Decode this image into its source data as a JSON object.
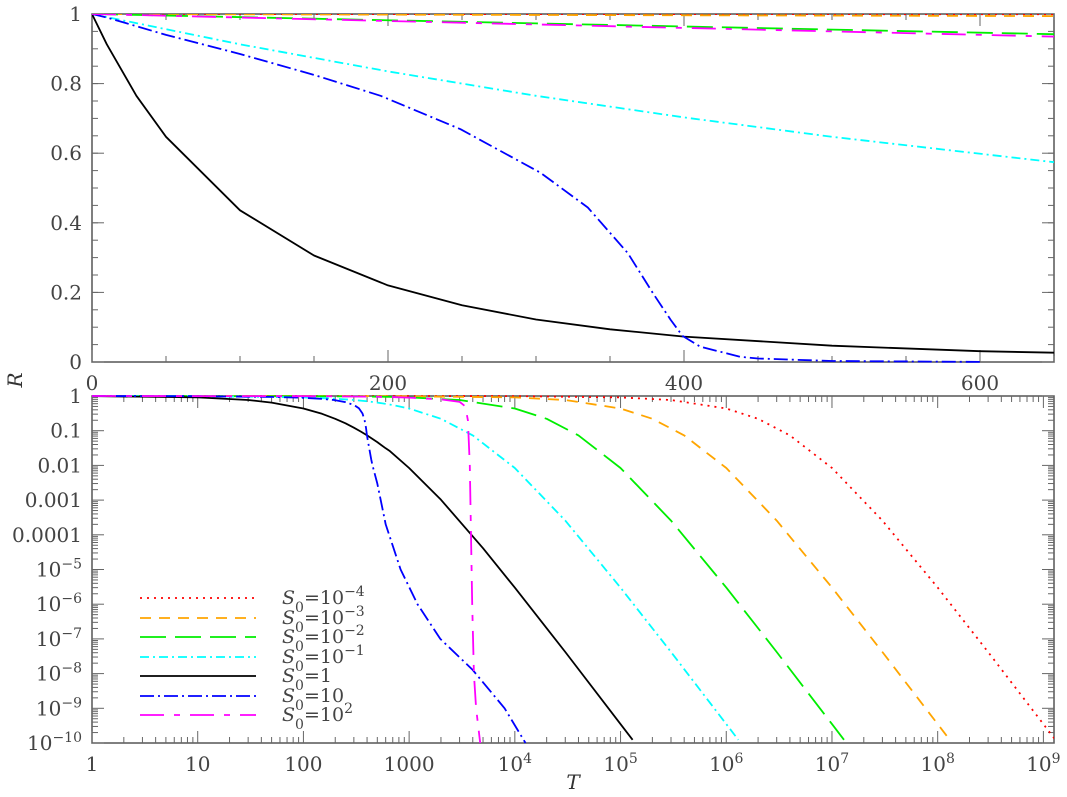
{
  "chart_data": [
    {
      "type": "line",
      "panel": "top",
      "xlabel": "",
      "ylabel": "R",
      "xscale": "linear",
      "yscale": "linear",
      "xlim": [
        0,
        650
      ],
      "ylim": [
        0,
        1
      ],
      "x_ticks": [
        {
          "v": 0,
          "label": "0"
        },
        {
          "v": 200,
          "label": "200"
        },
        {
          "v": 400,
          "label": "400"
        },
        {
          "v": 600,
          "label": "600"
        }
      ],
      "x_minor_step": 50,
      "y_ticks": [
        {
          "v": 0,
          "label": "0"
        },
        {
          "v": 0.2,
          "label": "0.2"
        },
        {
          "v": 0.4,
          "label": "0.4"
        },
        {
          "v": 0.6,
          "label": "0.6"
        },
        {
          "v": 0.8,
          "label": "0.8"
        },
        {
          "v": 1,
          "label": "1"
        }
      ],
      "y_minor_step": 0.05,
      "grid": false
    },
    {
      "type": "line",
      "panel": "bottom",
      "xlabel": "T",
      "ylabel": "",
      "xscale": "log",
      "yscale": "log",
      "xlim": [
        1,
        1260000000.0
      ],
      "ylim": [
        1e-10,
        1
      ],
      "x_ticks": [
        {
          "v": 1,
          "base": "1",
          "exp": ""
        },
        {
          "v": 10,
          "base": "10",
          "exp": ""
        },
        {
          "v": 100,
          "base": "100",
          "exp": ""
        },
        {
          "v": 1000,
          "base": "1000",
          "exp": ""
        },
        {
          "v": 10000.0,
          "base": "10",
          "exp": "4"
        },
        {
          "v": 100000.0,
          "base": "10",
          "exp": "5"
        },
        {
          "v": 1000000.0,
          "base": "10",
          "exp": "6"
        },
        {
          "v": 10000000.0,
          "base": "10",
          "exp": "7"
        },
        {
          "v": 100000000.0,
          "base": "10",
          "exp": "8"
        },
        {
          "v": 1000000000.0,
          "base": "10",
          "exp": "9"
        }
      ],
      "y_ticks": [
        {
          "v": 1,
          "base": "1",
          "exp": ""
        },
        {
          "v": 0.1,
          "base": "0.1",
          "exp": ""
        },
        {
          "v": 0.01,
          "base": "0.01",
          "exp": ""
        },
        {
          "v": 0.001,
          "base": "0.001",
          "exp": ""
        },
        {
          "v": 0.0001,
          "base": "0.0001",
          "exp": ""
        },
        {
          "v": 1e-05,
          "base": "10",
          "exp": "−5"
        },
        {
          "v": 1e-06,
          "base": "10",
          "exp": "−6"
        },
        {
          "v": 1e-07,
          "base": "10",
          "exp": "−7"
        },
        {
          "v": 1e-08,
          "base": "10",
          "exp": "−8"
        },
        {
          "v": 1e-09,
          "base": "10",
          "exp": "−9"
        },
        {
          "v": 1e-10,
          "base": "10",
          "exp": "−10"
        }
      ],
      "grid": false,
      "legend_placement": "bottom-left"
    }
  ],
  "series": [
    {
      "name": "S0=10^-4",
      "legend": {
        "var": "S",
        "sub": "0",
        "eq": "=10",
        "sup": "−4"
      },
      "color": "#ff0000",
      "dash": "2,5",
      "points": [
        [
          0,
          1
        ],
        [
          1,
          1
        ],
        [
          650,
          0.9994
        ],
        [
          10000.0,
          0.991
        ],
        [
          100000.0,
          0.913
        ],
        [
          300000.0,
          0.765
        ],
        [
          1000000.0,
          0.436
        ],
        [
          2000000.0,
          0.22
        ],
        [
          4000000.0,
          0.073
        ],
        [
          10000000.0,
          0.0084
        ],
        [
          30000000.0,
          0.000257
        ],
        [
          100000000.0,
          3e-06
        ],
        [
          300000000.0,
          4.2e-08
        ],
        [
          1000000000.0,
          3.5e-10
        ],
        [
          1300000000.0,
          1.24e-10
        ]
      ]
    },
    {
      "name": "S0=10^-3",
      "legend": {
        "var": "S",
        "sub": "0",
        "eq": "=10",
        "sup": "−3"
      },
      "color": "#ffa500",
      "dash": "11,8",
      "points": [
        [
          0,
          1
        ],
        [
          1,
          1
        ],
        [
          650,
          0.994
        ],
        [
          10000.0,
          0.913
        ],
        [
          30000.0,
          0.765
        ],
        [
          100000.0,
          0.436
        ],
        [
          200000.0,
          0.22
        ],
        [
          400000.0,
          0.073
        ],
        [
          1000000.0,
          0.0084
        ],
        [
          3000000.0,
          0.000257
        ],
        [
          10000000.0,
          3e-06
        ],
        [
          30000000.0,
          4.2e-08
        ],
        [
          100000000.0,
          3.5e-10
        ],
        [
          130000000.0,
          1.24e-10
        ]
      ]
    },
    {
      "name": "S0=10^-2",
      "legend": {
        "var": "S",
        "sub": "0",
        "eq": "=10",
        "sup": "−2"
      },
      "color": "#00ee00",
      "dash": "26,9",
      "points": [
        [
          0,
          1
        ],
        [
          1,
          1
        ],
        [
          300,
          0.973
        ],
        [
          650,
          0.942
        ],
        [
          1000,
          0.913
        ],
        [
          3000,
          0.765
        ],
        [
          10000.0,
          0.436
        ],
        [
          20000.0,
          0.22
        ],
        [
          40000.0,
          0.073
        ],
        [
          100000.0,
          0.0084
        ],
        [
          300000.0,
          0.000257
        ],
        [
          1000000.0,
          3e-06
        ],
        [
          3000000.0,
          4.2e-08
        ],
        [
          10000000.0,
          3.5e-10
        ],
        [
          13000000.0,
          1.24e-10
        ]
      ]
    },
    {
      "name": "S0=10^-1",
      "legend": {
        "var": "S",
        "sub": "0",
        "eq": "=10",
        "sup": "−1"
      },
      "color": "#00ffff",
      "dash": "9,4,2,4",
      "points": [
        [
          0,
          1
        ],
        [
          1,
          0.999
        ],
        [
          10,
          0.991
        ],
        [
          100,
          0.913
        ],
        [
          200,
          0.835
        ],
        [
          300,
          0.765
        ],
        [
          400,
          0.703
        ],
        [
          500,
          0.647
        ],
        [
          650,
          0.574
        ],
        [
          1000,
          0.436
        ],
        [
          2000,
          0.22
        ],
        [
          4000,
          0.073
        ],
        [
          10000.0,
          0.0084
        ],
        [
          30000.0,
          0.000257
        ],
        [
          100000.0,
          3e-06
        ],
        [
          300000.0,
          4.2e-08
        ],
        [
          1000000.0,
          3.5e-10
        ],
        [
          1300000.0,
          1.24e-10
        ]
      ]
    },
    {
      "name": "S0=1",
      "legend": {
        "var": "S",
        "sub": "0",
        "eq": "=1",
        "sup": ""
      },
      "color": "#000000",
      "dash": "",
      "points": [
        [
          0,
          1
        ],
        [
          1,
          0.991
        ],
        [
          10,
          0.913
        ],
        [
          30,
          0.765
        ],
        [
          50,
          0.647
        ],
        [
          100,
          0.436
        ],
        [
          150,
          0.306
        ],
        [
          200,
          0.22
        ],
        [
          250,
          0.163
        ],
        [
          300,
          0.122
        ],
        [
          350,
          0.094
        ],
        [
          400,
          0.073
        ],
        [
          500,
          0.0469
        ],
        [
          600,
          0.031
        ],
        [
          650,
          0.0266
        ],
        [
          1000,
          0.0084
        ],
        [
          2000,
          0.00102
        ],
        [
          5000,
          4.1e-05
        ],
        [
          10000.0,
          3e-06
        ],
        [
          30000.0,
          4.18e-08
        ],
        [
          100000.0,
          3.5e-10
        ],
        [
          130000.0,
          1.24e-10
        ]
      ]
    },
    {
      "name": "S0=10",
      "legend": {
        "var": "S",
        "sub": "0",
        "eq": "=10",
        "sup": ""
      },
      "color": "#0000ff",
      "dash": "14,4,2,4",
      "points": [
        [
          0,
          1
        ],
        [
          1,
          0.999
        ],
        [
          10,
          0.99
        ],
        [
          50,
          0.94
        ],
        [
          100,
          0.885
        ],
        [
          150,
          0.825
        ],
        [
          195,
          0.765
        ],
        [
          249,
          0.669
        ],
        [
          303,
          0.544
        ],
        [
          335,
          0.444
        ],
        [
          362,
          0.313
        ],
        [
          379,
          0.198
        ],
        [
          391,
          0.121
        ],
        [
          399,
          0.075
        ],
        [
          411,
          0.044
        ],
        [
          438,
          0.015
        ],
        [
          450,
          0.01
        ],
        [
          500,
          0.003
        ],
        [
          600,
          0.0002
        ],
        [
          830,
          1e-05
        ],
        [
          1200,
          1e-06
        ],
        [
          1970,
          1e-07
        ],
        [
          3970,
          1.3e-08
        ],
        [
          8000,
          1e-09
        ],
        [
          12600,
          1e-10
        ]
      ]
    },
    {
      "name": "S0=10^2",
      "legend": {
        "var": "S",
        "sub": "0",
        "eq": "=10",
        "sup": "2"
      },
      "color": "#ff00ff",
      "dash": "24,10,6,10",
      "points": [
        [
          0,
          1
        ],
        [
          1,
          1
        ],
        [
          100,
          0.99
        ],
        [
          200,
          0.98
        ],
        [
          400,
          0.96
        ],
        [
          650,
          0.935
        ],
        [
          1000,
          0.9
        ],
        [
          2000,
          0.8
        ],
        [
          3000,
          0.68
        ],
        [
          3400,
          0.5
        ],
        [
          3600,
          0.2
        ],
        [
          3750,
          0.01
        ],
        [
          3850,
          0.0001
        ],
        [
          3950,
          1e-06
        ],
        [
          4100,
          1e-08
        ],
        [
          4300,
          1e-09
        ],
        [
          4700,
          1e-10
        ]
      ]
    }
  ]
}
